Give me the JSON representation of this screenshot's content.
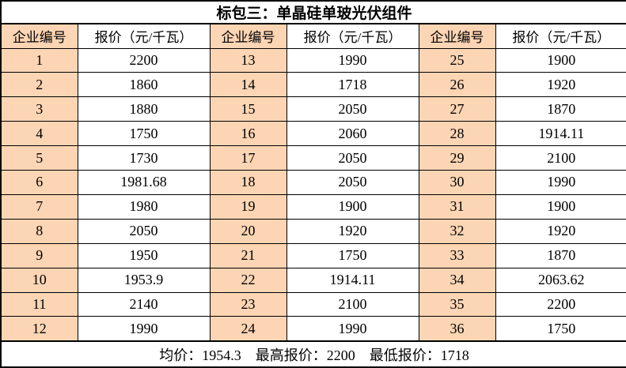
{
  "title": "标包三：单晶硅单玻光伏组件",
  "table": {
    "headers": [
      "企业编号",
      "报价（元/千瓦）",
      "企业编号",
      "报价（元/千瓦）",
      "企业编号",
      "报价（元/千瓦）"
    ],
    "rows": [
      [
        "1",
        "2200",
        "13",
        "1990",
        "25",
        "1900"
      ],
      [
        "2",
        "1860",
        "14",
        "1718",
        "26",
        "1920"
      ],
      [
        "3",
        "1880",
        "15",
        "2050",
        "27",
        "1870"
      ],
      [
        "4",
        "1750",
        "16",
        "2060",
        "28",
        "1914.11"
      ],
      [
        "5",
        "1730",
        "17",
        "2050",
        "29",
        "2100"
      ],
      [
        "6",
        "1981.68",
        "18",
        "2050",
        "30",
        "1990"
      ],
      [
        "7",
        "1980",
        "19",
        "1900",
        "31",
        "1900"
      ],
      [
        "8",
        "2050",
        "20",
        "1920",
        "32",
        "1920"
      ],
      [
        "9",
        "1950",
        "21",
        "1750",
        "33",
        "1870"
      ],
      [
        "10",
        "1953.9",
        "22",
        "1914.11",
        "34",
        "2063.62"
      ],
      [
        "11",
        "2140",
        "23",
        "2100",
        "35",
        "2200"
      ],
      [
        "12",
        "1990",
        "24",
        "1990",
        "36",
        "1750"
      ]
    ]
  },
  "summary": {
    "avg_label": "均价：",
    "avg_value": "1954.3",
    "max_label": "最高报价：",
    "max_value": "2200",
    "min_label": "最低报价：",
    "min_value": "1718"
  },
  "colors": {
    "header_fill": "#FCD5B4",
    "border": "#000000",
    "page_bg": "#FFFFFF",
    "text": "#000000"
  }
}
